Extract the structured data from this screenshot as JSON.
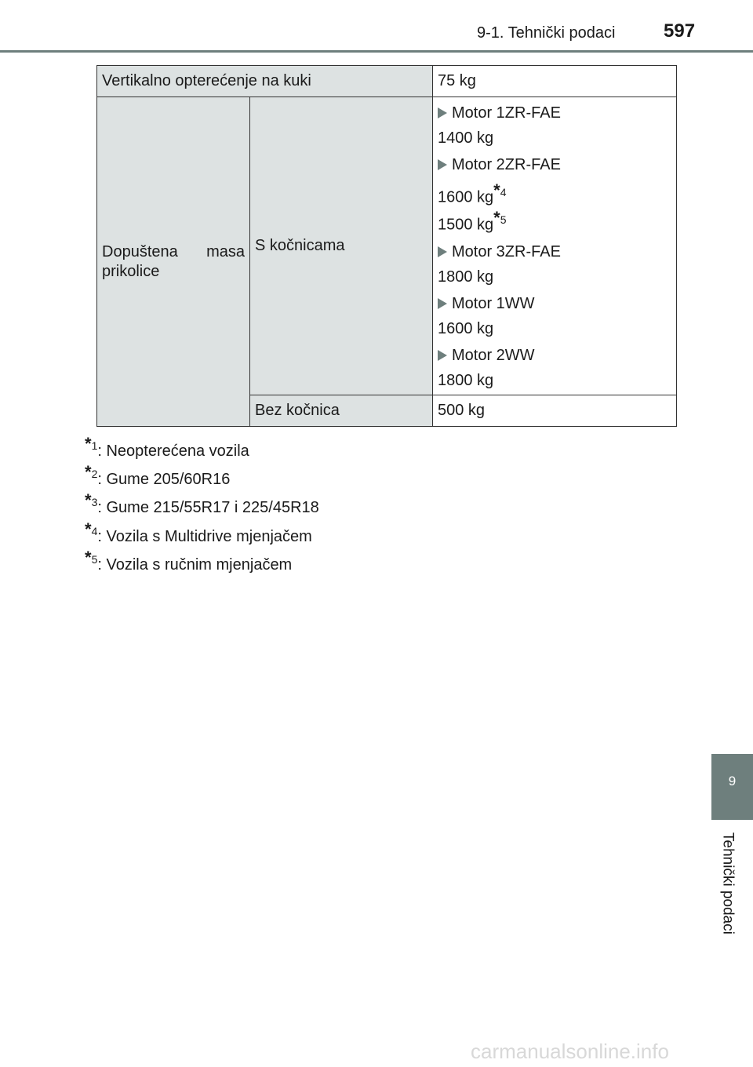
{
  "header": {
    "section": "9-1. Tehnički podaci",
    "page_number": "597"
  },
  "table": {
    "row1": {
      "label": "Vertikalno opterećenje na kuki",
      "value": "75 kg"
    },
    "row2": {
      "label": "Dopuštena masa prikolice",
      "sub": "S kočnicama",
      "engines": [
        {
          "name": "Motor 1ZR-FAE",
          "values": [
            "1400 kg"
          ]
        },
        {
          "name": "Motor 2ZR-FAE",
          "values": [
            "1600 kg",
            "1500 kg"
          ],
          "notes": [
            "4",
            "5"
          ]
        },
        {
          "name": "Motor 3ZR-FAE",
          "values": [
            "1800 kg"
          ]
        },
        {
          "name": "Motor 1WW",
          "values": [
            "1600 kg"
          ]
        },
        {
          "name": "Motor 2WW",
          "values": [
            "1800 kg"
          ]
        }
      ]
    },
    "row3": {
      "sub": "Bez kočnica",
      "value": "500 kg"
    }
  },
  "footnotes": [
    {
      "n": "1",
      "text": ": Neopterećena vozila"
    },
    {
      "n": "2",
      "text": ": Gume 205/60R16"
    },
    {
      "n": "3",
      "text": ": Gume 215/55R17 i 225/45R18"
    },
    {
      "n": "4",
      "text": ": Vozila s Multidrive mjenjačem"
    },
    {
      "n": "5",
      "text": ": Vozila s ručnim mjenjačem"
    }
  ],
  "side_tab": {
    "number": "9",
    "label": "Tehnički podaci"
  },
  "watermark": "carmanualsonline.info",
  "colors": {
    "accent": "#6e7f7d",
    "cell_bg": "#dde2e2"
  }
}
